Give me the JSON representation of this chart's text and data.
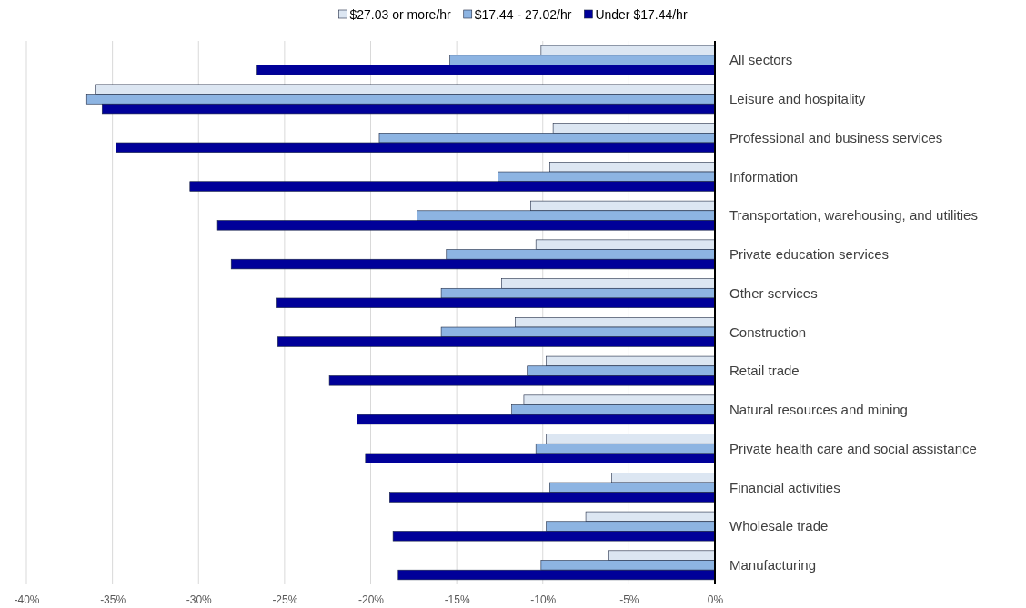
{
  "chart_data": {
    "type": "bar",
    "orientation": "horizontal",
    "categories": [
      "All sectors",
      "Leisure and hospitality",
      "Professional and business services",
      "Information",
      "Transportation, warehousing, and utilities",
      "Private education services",
      "Other services",
      "Construction",
      "Retail trade",
      "Natural resources and mining",
      "Private health care and social assistance",
      "Financial activities",
      "Wholesale trade",
      "Manufacturing"
    ],
    "series": [
      {
        "name": "$27.03 or more/hr",
        "color": "#dce6f2",
        "values": [
          -10.1,
          -36.0,
          -9.4,
          -9.6,
          -10.7,
          -10.4,
          -12.4,
          -11.6,
          -9.8,
          -11.1,
          -9.8,
          -6.0,
          -7.5,
          -6.2
        ]
      },
      {
        "name": "$17.44 - 27.02/hr",
        "color": "#8db4e2",
        "values": [
          -15.4,
          -36.5,
          -19.5,
          -12.6,
          -17.3,
          -15.6,
          -15.9,
          -15.9,
          -10.9,
          -11.8,
          -10.4,
          -9.6,
          -9.8,
          -10.1
        ]
      },
      {
        "name": "Under $17.44/hr",
        "color": "#000099",
        "values": [
          -26.6,
          -35.6,
          -34.8,
          -30.5,
          -28.9,
          -28.1,
          -25.5,
          -25.4,
          -22.4,
          -20.8,
          -20.3,
          -18.9,
          -18.7,
          -18.4
        ]
      }
    ],
    "xlim": [
      -40,
      0
    ],
    "xticks": [
      {
        "value": -40,
        "label": "-40%"
      },
      {
        "value": -35,
        "label": "-35%"
      },
      {
        "value": -30,
        "label": "-30%"
      },
      {
        "value": -25,
        "label": "-25%"
      },
      {
        "value": -20,
        "label": "-20%"
      },
      {
        "value": -15,
        "label": "-15%"
      },
      {
        "value": -10,
        "label": "-10%"
      },
      {
        "value": -5,
        "label": "-5%"
      },
      {
        "value": 0,
        "label": "0%"
      }
    ],
    "grid": "x",
    "legend": "top"
  }
}
